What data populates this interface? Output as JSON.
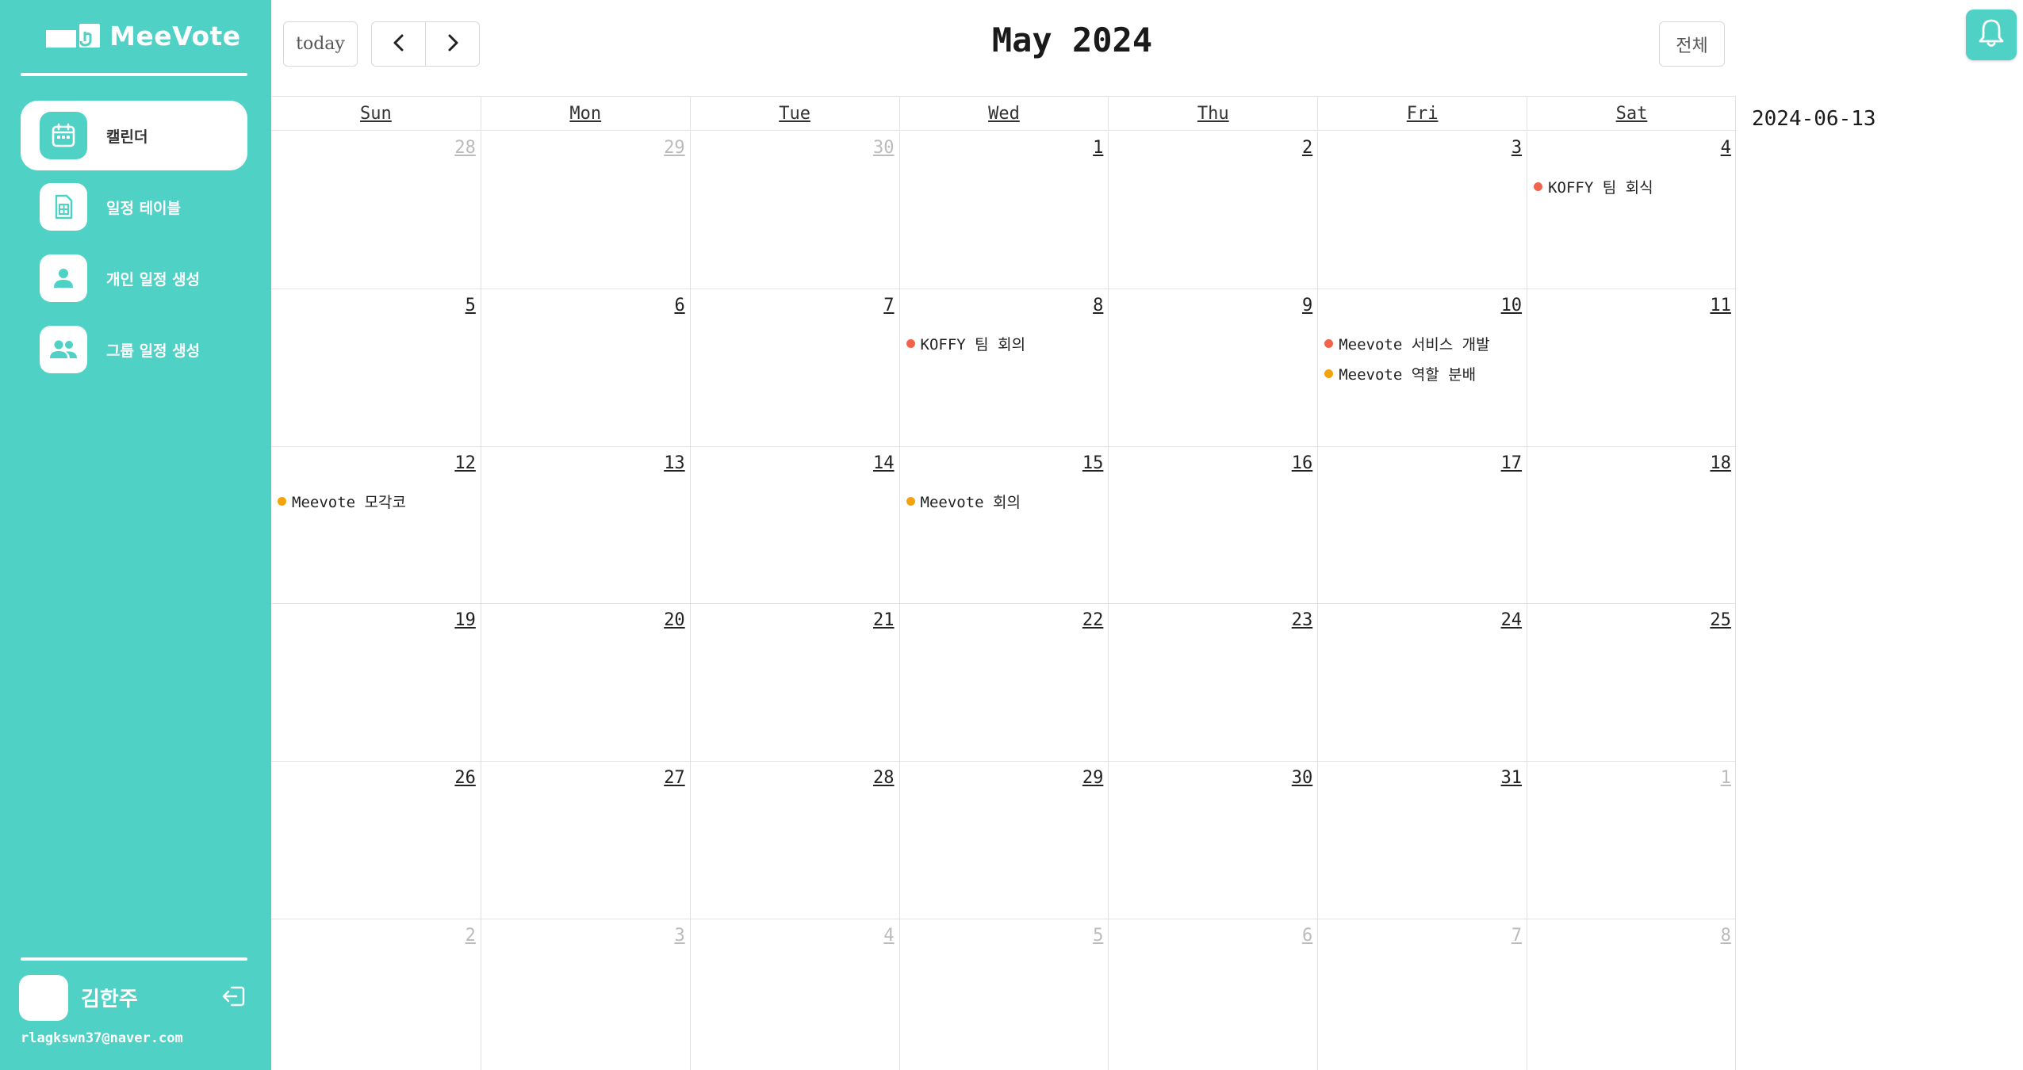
{
  "brand": {
    "name": "MeeVote"
  },
  "nav": [
    {
      "label": "캘린더",
      "icon": "calendar-icon",
      "active": true
    },
    {
      "label": "일정 테이블",
      "icon": "table-icon",
      "active": false
    },
    {
      "label": "개인 일정 생성",
      "icon": "person-icon",
      "active": false
    },
    {
      "label": "그룹 일정 생성",
      "icon": "group-icon",
      "active": false
    }
  ],
  "user": {
    "name": "김한주",
    "email": "rlagkswn37@naver.com"
  },
  "toolbar": {
    "today_label": "today",
    "title": "May 2024",
    "filter_label": "전체"
  },
  "calendar": {
    "days_of_week": [
      "Sun",
      "Mon",
      "Tue",
      "Wed",
      "Thu",
      "Fri",
      "Sat"
    ],
    "weeks": [
      [
        {
          "day": "28",
          "other": true,
          "events": []
        },
        {
          "day": "29",
          "other": true,
          "events": []
        },
        {
          "day": "30",
          "other": true,
          "events": []
        },
        {
          "day": "1",
          "events": []
        },
        {
          "day": "2",
          "events": []
        },
        {
          "day": "3",
          "events": []
        },
        {
          "day": "4",
          "events": [
            {
              "title": "KOFFY 팀 회식",
              "color": "#f4624a"
            }
          ]
        }
      ],
      [
        {
          "day": "5",
          "events": []
        },
        {
          "day": "6",
          "events": []
        },
        {
          "day": "7",
          "events": []
        },
        {
          "day": "8",
          "events": [
            {
              "title": "KOFFY 팀 회의",
              "color": "#f4624a"
            }
          ]
        },
        {
          "day": "9",
          "events": []
        },
        {
          "day": "10",
          "events": [
            {
              "title": "Meevote 서비스 개발",
              "color": "#f4624a"
            },
            {
              "title": "Meevote 역할 분배",
              "color": "#f5a30c"
            }
          ]
        },
        {
          "day": "11",
          "events": []
        }
      ],
      [
        {
          "day": "12",
          "events": [
            {
              "title": "Meevote 모각코",
              "color": "#f5a30c"
            }
          ]
        },
        {
          "day": "13",
          "events": []
        },
        {
          "day": "14",
          "events": []
        },
        {
          "day": "15",
          "events": [
            {
              "title": "Meevote 회의",
              "color": "#f5a30c"
            }
          ]
        },
        {
          "day": "16",
          "events": []
        },
        {
          "day": "17",
          "events": []
        },
        {
          "day": "18",
          "events": []
        }
      ],
      [
        {
          "day": "19",
          "events": []
        },
        {
          "day": "20",
          "events": []
        },
        {
          "day": "21",
          "events": []
        },
        {
          "day": "22",
          "events": []
        },
        {
          "day": "23",
          "events": []
        },
        {
          "day": "24",
          "events": []
        },
        {
          "day": "25",
          "events": []
        }
      ],
      [
        {
          "day": "26",
          "events": []
        },
        {
          "day": "27",
          "events": []
        },
        {
          "day": "28",
          "events": []
        },
        {
          "day": "29",
          "events": []
        },
        {
          "day": "30",
          "events": []
        },
        {
          "day": "31",
          "events": []
        },
        {
          "day": "1",
          "other": true,
          "events": []
        }
      ],
      [
        {
          "day": "2",
          "other": true,
          "events": []
        },
        {
          "day": "3",
          "other": true,
          "events": []
        },
        {
          "day": "4",
          "other": true,
          "events": []
        },
        {
          "day": "5",
          "other": true,
          "events": []
        },
        {
          "day": "6",
          "other": true,
          "events": []
        },
        {
          "day": "7",
          "other": true,
          "events": []
        },
        {
          "day": "8",
          "other": true,
          "events": []
        }
      ]
    ]
  },
  "side_panel": {
    "selected_date": "2024-06-13"
  },
  "colors": {
    "accent": "#4fd1c5",
    "event_red": "#f4624a",
    "event_orange": "#f5a30c"
  }
}
